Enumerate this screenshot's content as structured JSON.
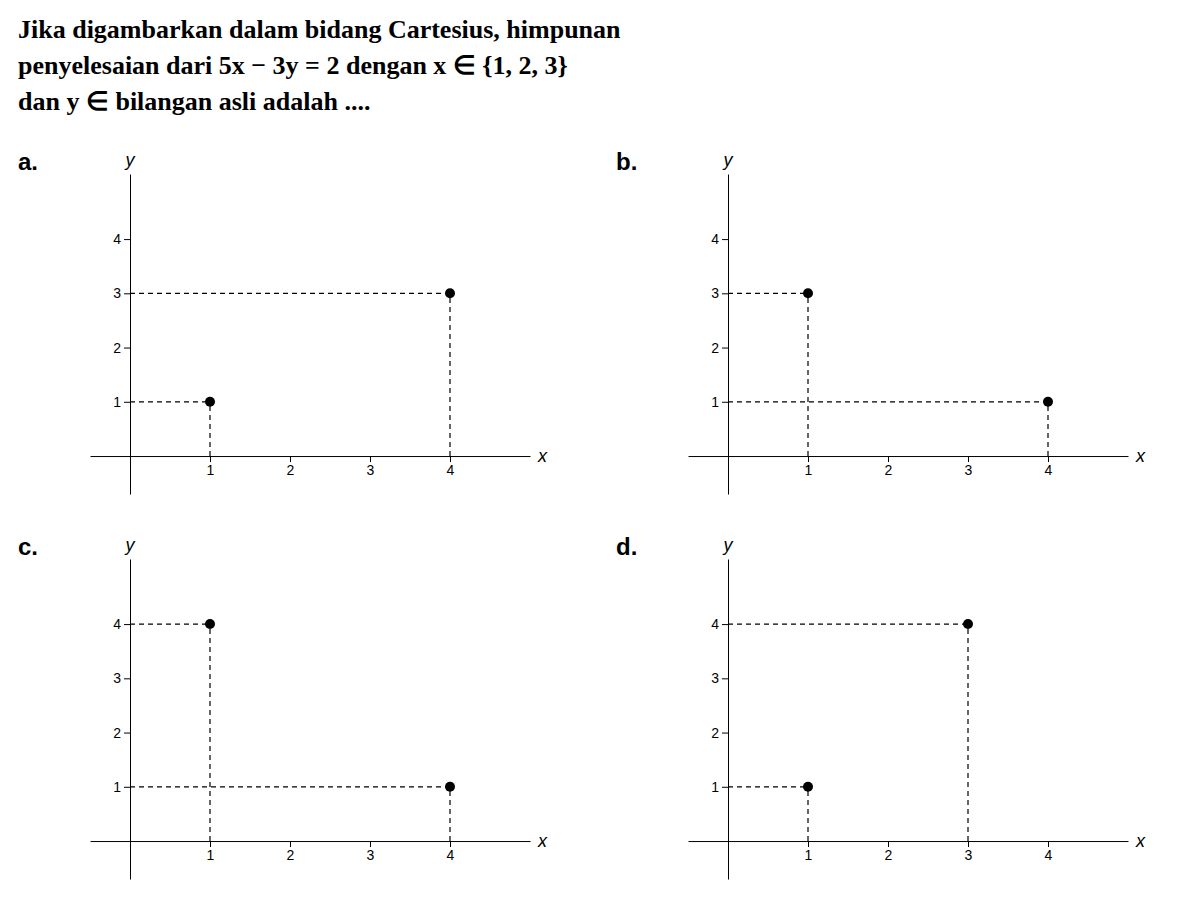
{
  "title": [
    "Jika digambarkan dalam bidang Cartesius, himpunan",
    "penyelesaian dari 5x − 3y = 2 dengan x ∈  {1, 2, 3}",
    "dan y ∈  bilangan asli adalah ...."
  ],
  "chart_data": [
    {
      "type": "scatter",
      "title": "a.",
      "x": [
        1,
        4
      ],
      "values": [
        1,
        3
      ],
      "xlabel": "x",
      "ylabel": "y",
      "color": "black",
      "xlim": [
        -0.5,
        5.0
      ],
      "ylim": [
        -0.7,
        5.2
      ],
      "xticks": [
        1,
        2,
        3,
        4
      ],
      "yticks": [
        1,
        2,
        3,
        4
      ]
    },
    {
      "type": "scatter",
      "title": "b.",
      "x": [
        1,
        4
      ],
      "values": [
        3,
        1
      ],
      "xlabel": "x",
      "ylabel": "y",
      "color": "black",
      "xlim": [
        -0.5,
        5.0
      ],
      "ylim": [
        -0.7,
        5.2
      ],
      "xticks": [
        1,
        2,
        3,
        4
      ],
      "yticks": [
        1,
        2,
        3,
        4
      ]
    },
    {
      "type": "scatter",
      "title": "c.",
      "x": [
        1,
        4
      ],
      "values": [
        4,
        1
      ],
      "xlabel": "x",
      "ylabel": "y",
      "color": "black",
      "xlim": [
        -0.5,
        5.0
      ],
      "ylim": [
        -0.7,
        5.2
      ],
      "xticks": [
        1,
        2,
        3,
        4
      ],
      "yticks": [
        1,
        2,
        3,
        4
      ]
    },
    {
      "type": "scatter",
      "title": "d.",
      "x": [
        1,
        3
      ],
      "values": [
        1,
        4
      ],
      "xlabel": "x",
      "ylabel": "y",
      "color": "black",
      "xlim": [
        -0.5,
        5.0
      ],
      "ylim": [
        -0.7,
        5.2
      ],
      "xticks": [
        1,
        2,
        3,
        4
      ],
      "yticks": [
        1,
        2,
        3,
        4
      ]
    }
  ]
}
